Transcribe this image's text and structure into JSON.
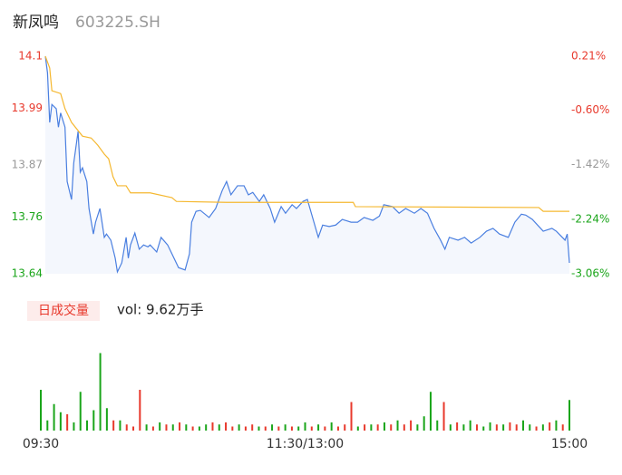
{
  "header": {
    "name": "新凤鸣",
    "code": "603225.SH"
  },
  "chart_data": [
    {
      "type": "line",
      "xlim": [
        0,
        240
      ],
      "ylim": [
        13.64,
        14.1
      ],
      "yticks": [
        13.64,
        13.76,
        13.87,
        13.99,
        14.1
      ],
      "ytick_colors": [
        "#1aa51a",
        "#1aa51a",
        "#999999",
        "#e8392c",
        "#e8392c"
      ],
      "y2lim": [
        -3.06,
        0.21
      ],
      "y2ticks": [
        {
          "value": -3.06,
          "label": "-3.06%"
        },
        {
          "value": -2.24,
          "label": "-2.24%"
        },
        {
          "value": -1.42,
          "label": "-1.42%"
        },
        {
          "value": -0.6,
          "label": "-0.60%"
        },
        {
          "value": 0.21,
          "label": "0.21%"
        }
      ],
      "y2tick_colors": [
        "#1aa51a",
        "#1aa51a",
        "#999999",
        "#e8392c",
        "#e8392c"
      ],
      "series": [
        {
          "color": "#4a7fe0",
          "fill": "#f4f7fd",
          "x": [
            0,
            1,
            2,
            3,
            5,
            6,
            7,
            9,
            10,
            12,
            13,
            15,
            16,
            17,
            19,
            20,
            22,
            23,
            25,
            27,
            28,
            30,
            32,
            33,
            35,
            37,
            38,
            39,
            41,
            43,
            45,
            47,
            48,
            51,
            53,
            56,
            58,
            61,
            64,
            66,
            67,
            69,
            71,
            75,
            78,
            81,
            83,
            85,
            88,
            91,
            93,
            95,
            98,
            100,
            103,
            105,
            108,
            110,
            113,
            115,
            118,
            120,
            123,
            125,
            127,
            130,
            133,
            136,
            140,
            143,
            146,
            150,
            153,
            155,
            159,
            162,
            165,
            169,
            172,
            175,
            178,
            181,
            183,
            185,
            189,
            192,
            195,
            199,
            202,
            205,
            208,
            212,
            215,
            218,
            220,
            223,
            226,
            228,
            232,
            234,
            238,
            239,
            240
          ],
          "values": [
            14.1,
            14.065,
            13.96,
            13.998,
            13.989,
            13.95,
            13.98,
            13.95,
            13.835,
            13.797,
            13.874,
            13.941,
            13.855,
            13.864,
            13.835,
            13.778,
            13.724,
            13.749,
            13.778,
            13.717,
            13.724,
            13.711,
            13.673,
            13.644,
            13.663,
            13.717,
            13.673,
            13.701,
            13.726,
            13.692,
            13.701,
            13.697,
            13.701,
            13.686,
            13.717,
            13.701,
            13.682,
            13.653,
            13.648,
            13.682,
            13.749,
            13.772,
            13.774,
            13.759,
            13.778,
            13.816,
            13.835,
            13.807,
            13.826,
            13.826,
            13.807,
            13.812,
            13.793,
            13.807,
            13.778,
            13.749,
            13.782,
            13.768,
            13.786,
            13.778,
            13.793,
            13.797,
            13.749,
            13.717,
            13.743,
            13.74,
            13.743,
            13.755,
            13.749,
            13.749,
            13.759,
            13.753,
            13.762,
            13.786,
            13.782,
            13.768,
            13.778,
            13.768,
            13.778,
            13.768,
            13.736,
            13.711,
            13.692,
            13.717,
            13.711,
            13.717,
            13.705,
            13.717,
            13.73,
            13.736,
            13.724,
            13.717,
            13.749,
            13.766,
            13.764,
            13.755,
            13.74,
            13.73,
            13.736,
            13.73,
            13.711,
            13.724,
            13.663
          ]
        },
        {
          "color": "#f5b830",
          "x": [
            0,
            2,
            3,
            7,
            9,
            12,
            17,
            21,
            24,
            27,
            29,
            31,
            33,
            37,
            39,
            48,
            58,
            60,
            83,
            141,
            142,
            226,
            228,
            240
          ],
          "values": [
            14.1,
            14.075,
            14.027,
            14.021,
            13.989,
            13.96,
            13.931,
            13.927,
            13.912,
            13.893,
            13.883,
            13.845,
            13.826,
            13.826,
            13.811,
            13.811,
            13.801,
            13.793,
            13.791,
            13.791,
            13.782,
            13.78,
            13.772,
            13.772
          ]
        }
      ]
    },
    {
      "type": "bar",
      "label": "日成交量",
      "summary": "vol: 9.62万手",
      "xlim": [
        0,
        240
      ],
      "ylim": [
        0,
        4000
      ],
      "xticks": [
        {
          "value": 0,
          "label": "09:30"
        },
        {
          "value": 120,
          "label": "11:30/13:00"
        },
        {
          "value": 240,
          "label": "15:00"
        }
      ],
      "x": [
        0,
        3,
        6,
        9,
        12,
        15,
        18,
        21,
        24,
        27,
        30,
        33,
        36,
        39,
        42,
        45,
        48,
        51,
        54,
        57,
        60,
        63,
        66,
        69,
        72,
        75,
        78,
        81,
        84,
        87,
        90,
        93,
        96,
        99,
        102,
        105,
        108,
        111,
        114,
        117,
        120,
        123,
        126,
        129,
        132,
        135,
        138,
        141,
        144,
        147,
        150,
        153,
        156,
        159,
        162,
        165,
        168,
        171,
        174,
        177,
        180,
        183,
        186,
        189,
        192,
        195,
        198,
        201,
        204,
        207,
        210,
        213,
        216,
        219,
        222,
        225,
        228,
        231,
        234,
        237,
        240
      ],
      "values": [
        2000,
        500,
        1300,
        900,
        800,
        400,
        1900,
        500,
        1000,
        3800,
        1100,
        500,
        500,
        300,
        200,
        2000,
        300,
        200,
        400,
        300,
        300,
        400,
        300,
        200,
        200,
        300,
        400,
        300,
        400,
        200,
        300,
        200,
        300,
        200,
        200,
        300,
        200,
        300,
        200,
        200,
        400,
        200,
        300,
        200,
        400,
        200,
        300,
        1400,
        200,
        300,
        300,
        300,
        400,
        300,
        500,
        300,
        500,
        300,
        700,
        1900,
        500,
        1400,
        300,
        400,
        300,
        500,
        300,
        200,
        400,
        300,
        300,
        400,
        300,
        500,
        300,
        200,
        300,
        400,
        500,
        300,
        1500
      ],
      "colors": [
        "#1aa51a",
        "#1aa51a",
        "#1aa51a",
        "#1aa51a",
        "#e8392c",
        "#1aa51a",
        "#1aa51a",
        "#1aa51a",
        "#1aa51a",
        "#1aa51a",
        "#1aa51a",
        "#e8392c",
        "#1aa51a",
        "#e8392c",
        "#e8392c",
        "#e8392c",
        "#1aa51a",
        "#e8392c",
        "#1aa51a",
        "#e8392c",
        "#1aa51a",
        "#e8392c",
        "#1aa51a",
        "#e8392c",
        "#1aa51a",
        "#1aa51a",
        "#e8392c",
        "#1aa51a",
        "#e8392c",
        "#e8392c",
        "#1aa51a",
        "#e8392c",
        "#e8392c",
        "#1aa51a",
        "#e8392c",
        "#1aa51a",
        "#e8392c",
        "#1aa51a",
        "#e8392c",
        "#1aa51a",
        "#1aa51a",
        "#e8392c",
        "#1aa51a",
        "#e8392c",
        "#1aa51a",
        "#e8392c",
        "#e8392c",
        "#e8392c",
        "#1aa51a",
        "#e8392c",
        "#1aa51a",
        "#e8392c",
        "#1aa51a",
        "#e8392c",
        "#1aa51a",
        "#e8392c",
        "#e8392c",
        "#1aa51a",
        "#1aa51a",
        "#1aa51a",
        "#1aa51a",
        "#e8392c",
        "#1aa51a",
        "#e8392c",
        "#1aa51a",
        "#1aa51a",
        "#e8392c",
        "#1aa51a",
        "#1aa51a",
        "#e8392c",
        "#1aa51a",
        "#e8392c",
        "#e8392c",
        "#1aa51a",
        "#1aa51a",
        "#e8392c",
        "#1aa51a",
        "#e8392c",
        "#1aa51a",
        "#e8392c",
        "#1aa51a"
      ]
    }
  ]
}
